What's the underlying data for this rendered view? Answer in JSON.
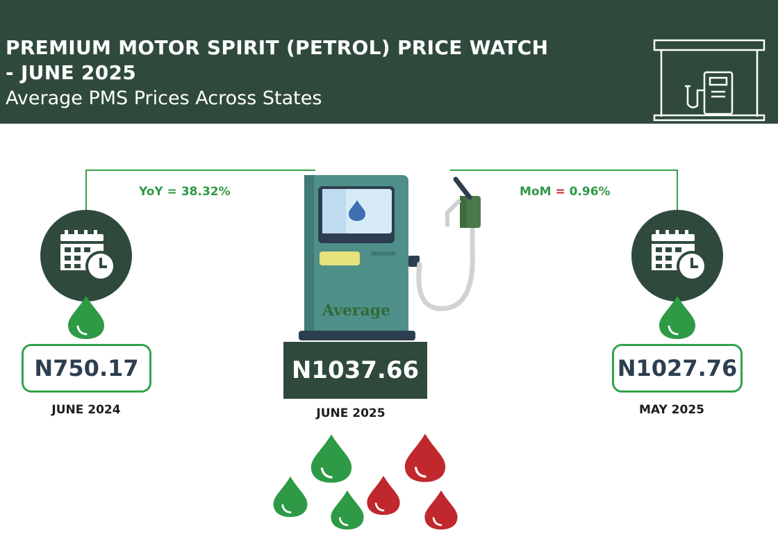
{
  "header": {
    "title_line1": "PREMIUM MOTOR SPIRIT (PETROL) PRICE WATCH",
    "title_line2": "- JUNE 2025",
    "subtitle": "Average PMS Prices Across States",
    "icon": "fuel-station-icon"
  },
  "yoy": {
    "key": "YoY",
    "eq": "=",
    "value": "38.32%"
  },
  "mom": {
    "key": "MoM",
    "eq": "=",
    "value": "0.96%"
  },
  "left": {
    "price": "N750.17",
    "date": "JUNE 2024",
    "icon": "calendar-clock-icon"
  },
  "center": {
    "label": "Average",
    "price": "N1037.66",
    "date": "JUNE 2025",
    "icon": "fuel-pump-icon"
  },
  "right": {
    "price": "N1027.76",
    "date": "MAY 2025",
    "icon": "calendar-clock-icon"
  },
  "colors": {
    "dark_green": "#2f4a3c",
    "green": "#33a14b",
    "red": "#c0282d",
    "pump_teal": "#4f8f8a"
  }
}
